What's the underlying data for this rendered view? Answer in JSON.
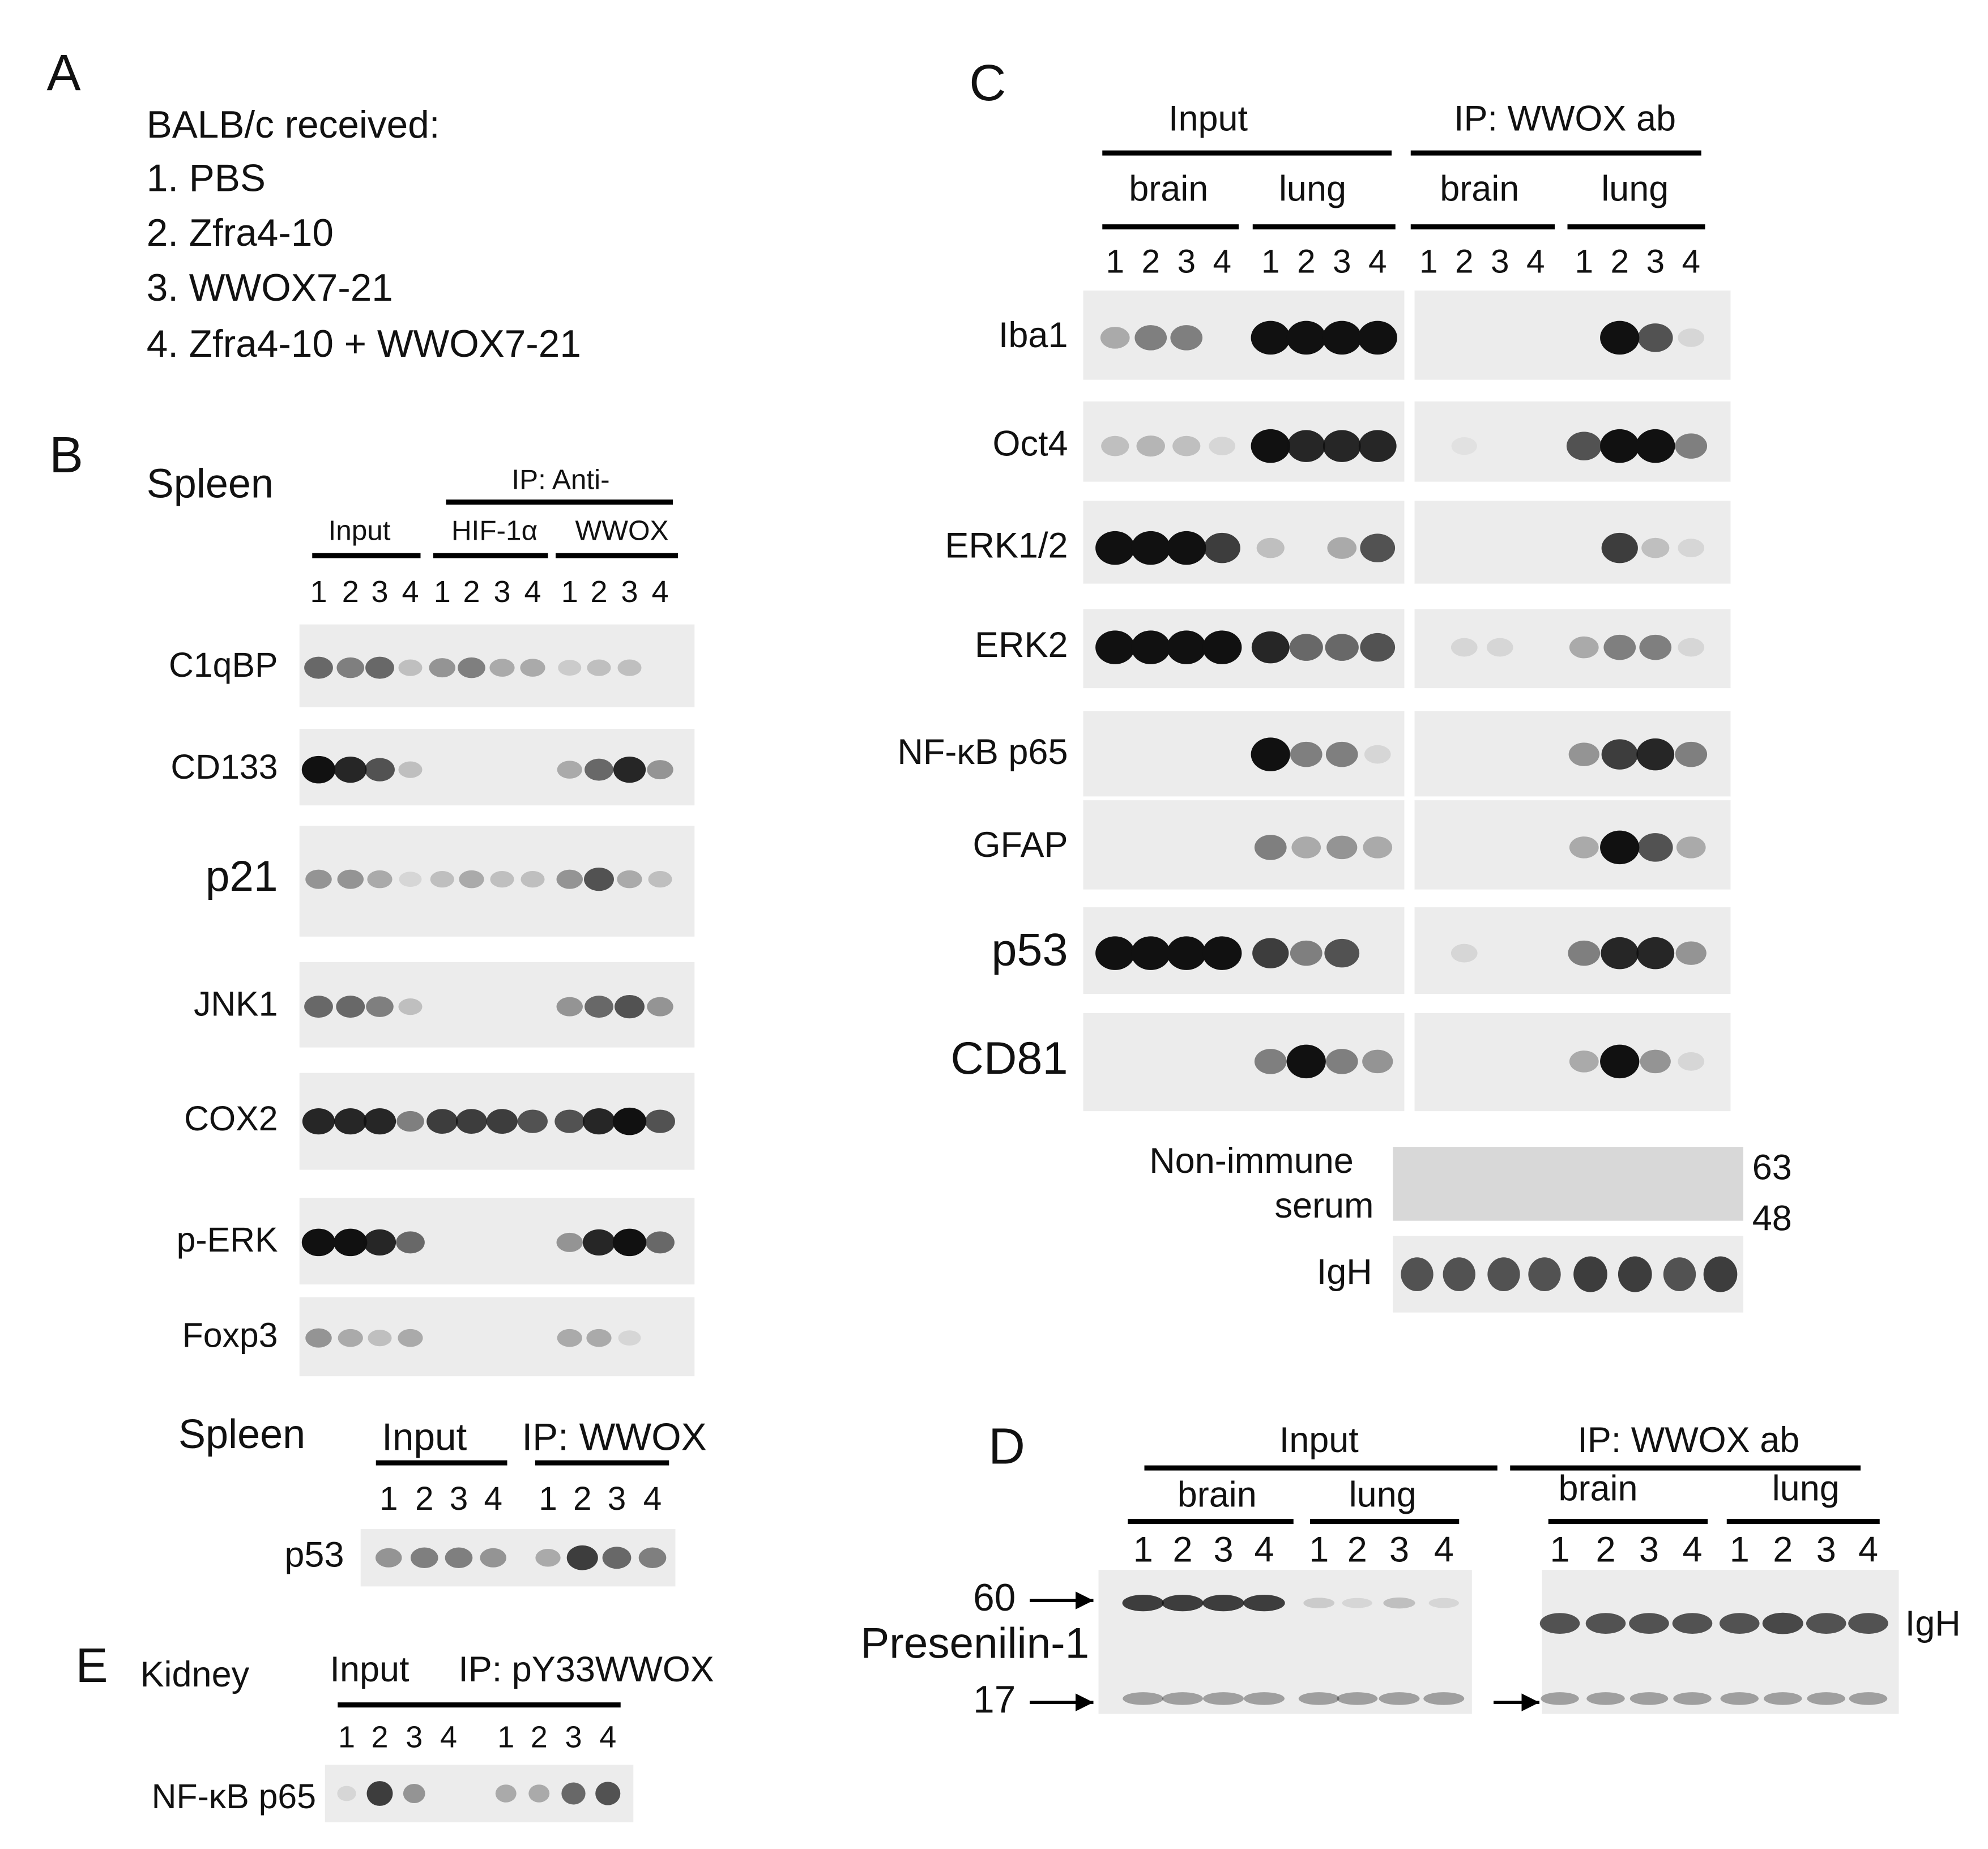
{
  "panel_a": {
    "label": "A",
    "title": "BALB/c received:",
    "items": [
      "1. PBS",
      "2. Zfra4-10",
      "3. WWOX7-21",
      "4. Zfra4-10 + WWOX7-21"
    ]
  },
  "panel_b": {
    "label": "B",
    "tissue": "Spleen",
    "ip_header": "IP: Anti-",
    "groups": [
      "Input",
      "HIF-1α",
      "WWOX"
    ],
    "lanes": [
      "1",
      "2",
      "3",
      "4"
    ],
    "rows": [
      "C1qBP",
      "CD133",
      "p21",
      "JNK1",
      "COX2",
      "p-ERK",
      "Foxp3"
    ]
  },
  "panel_b2": {
    "tissue": "Spleen",
    "groups": [
      "Input",
      "IP: WWOX"
    ],
    "lanes": [
      "1",
      "2",
      "3",
      "4"
    ],
    "rows": [
      "p53"
    ]
  },
  "panel_c": {
    "label": "C",
    "groups": [
      "Input",
      "IP: WWOX ab"
    ],
    "tissues": [
      "brain",
      "lung"
    ],
    "lanes": [
      "1",
      "2",
      "3",
      "4"
    ],
    "rows": [
      "Iba1",
      "Oct4",
      "ERK1/2",
      "ERK2",
      "NF-κB p65",
      "GFAP",
      "p53",
      "CD81"
    ],
    "control": {
      "label": [
        "Non-immune",
        "serum"
      ],
      "markers": [
        "63",
        "48"
      ],
      "loading": "IgH"
    }
  },
  "panel_d": {
    "label": "D",
    "groups": [
      "Input",
      "IP: WWOX ab"
    ],
    "tissues": [
      "brain",
      "lung"
    ],
    "lanes": [
      "1",
      "2",
      "3",
      "4"
    ],
    "protein": "Presenilin-1",
    "markers": [
      "60",
      "17"
    ],
    "loading": "IgH"
  },
  "panel_e": {
    "label": "E",
    "tissue": "Kidney",
    "groups": [
      "Input",
      "IP: pY33WWOX"
    ],
    "lanes": [
      "1",
      "2",
      "3",
      "4"
    ],
    "rows": [
      "NF-κB p65"
    ]
  }
}
